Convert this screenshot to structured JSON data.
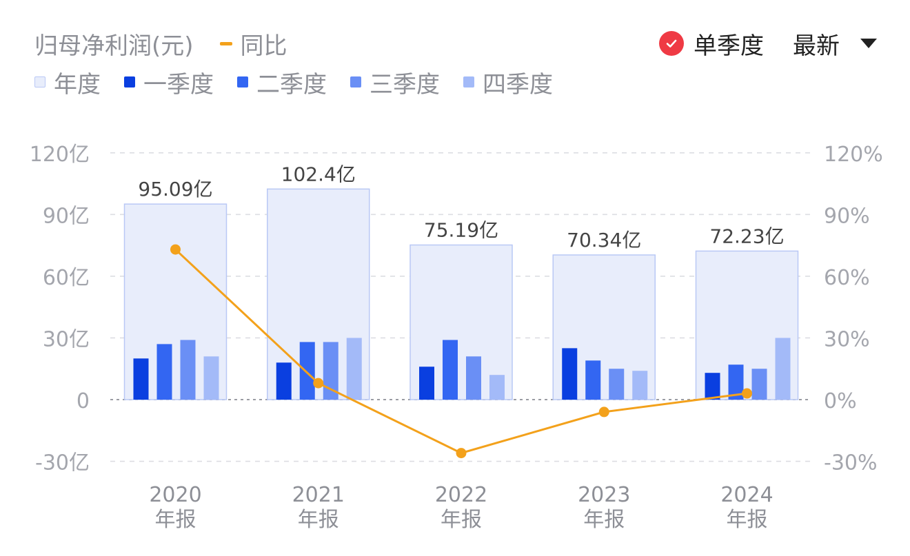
{
  "header": {
    "title": "归母净利润(元)",
    "yoy_label": "同比",
    "single_quarter_label": "单季度",
    "latest_label": "最新"
  },
  "colors": {
    "annual_fill": "#e8edfb",
    "annual_stroke": "#b9c8f5",
    "q1": "#0a3fe0",
    "q2": "#3366f2",
    "q3": "#6a8ff5",
    "q4": "#a3baf8",
    "yoy_line": "#f3a11b",
    "check": "#ef3a44"
  },
  "chart_data": {
    "type": "bar",
    "categories": [
      "2020",
      "2021",
      "2022",
      "2023",
      "2024"
    ],
    "category_sublabel": "年报",
    "legend": [
      "年度",
      "一季度",
      "二季度",
      "三季度",
      "四季度"
    ],
    "annual_labels": [
      "95.09亿",
      "102.4亿",
      "75.19亿",
      "70.34亿",
      "72.23亿"
    ],
    "series": [
      {
        "name": "年度",
        "values": [
          95.09,
          102.4,
          75.19,
          70.34,
          72.23
        ]
      },
      {
        "name": "一季度",
        "values": [
          20,
          18,
          16,
          25,
          13
        ]
      },
      {
        "name": "二季度",
        "values": [
          27,
          28,
          29,
          19,
          17
        ]
      },
      {
        "name": "三季度",
        "values": [
          29,
          28,
          21,
          15,
          15
        ]
      },
      {
        "name": "四季度",
        "values": [
          21,
          30,
          12,
          14,
          30
        ]
      },
      {
        "name": "同比",
        "axis": "right",
        "values": [
          73,
          8,
          -26,
          -6,
          3
        ]
      }
    ],
    "ylim": [
      -30,
      120
    ],
    "y_ticks": [
      "-30亿",
      "0",
      "30亿",
      "60亿",
      "90亿",
      "120亿"
    ],
    "y_tick_values": [
      -30,
      0,
      30,
      60,
      90,
      120
    ],
    "y2lim": [
      -30,
      120
    ],
    "y2_ticks": [
      "-30%",
      "0%",
      "30%",
      "60%",
      "90%",
      "120%"
    ],
    "grid": true
  }
}
